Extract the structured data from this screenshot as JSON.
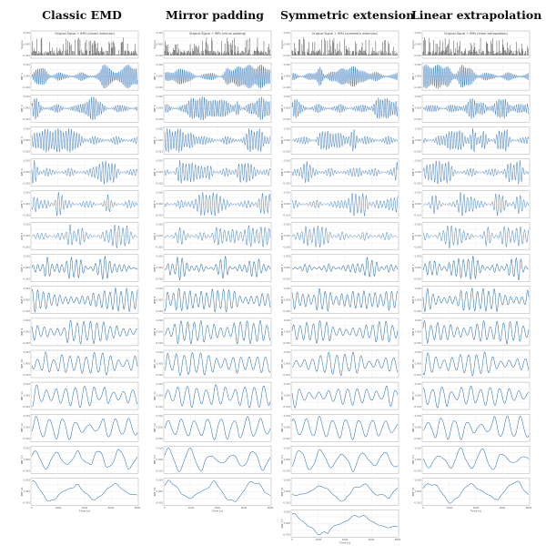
{
  "figure": {
    "columns": [
      {
        "title": "Classic EMD",
        "subtitle": "Original Signal + IMFs (classic extension)",
        "imf_count": 14,
        "row_labels": [
          "Signal",
          "IMF 1",
          "IMF 2",
          "IMF 3",
          "IMF 4",
          "IMF 5",
          "IMF 6",
          "IMF 7",
          "IMF 8",
          "IMF 9",
          "IMF 10",
          "IMF 11",
          "IMF 12",
          "IMF 13",
          "IMF 14"
        ]
      },
      {
        "title": "Mirror padding",
        "subtitle": "Original Signal + IMFs (mirror padding)",
        "imf_count": 14,
        "row_labels": [
          "Signal",
          "IMF 1",
          "IMF 2",
          "IMF 3",
          "IMF 4",
          "IMF 5",
          "IMF 6",
          "IMF 7",
          "IMF 8",
          "IMF 9",
          "IMF 10",
          "IMF 11",
          "IMF 12",
          "IMF 13",
          "IMF 14"
        ]
      },
      {
        "title": "Symmetric extension",
        "subtitle": "Original Signal + IMFs (symmetric extension)",
        "imf_count": 15,
        "row_labels": [
          "Signal",
          "IMF 1",
          "IMF 2",
          "IMF 3",
          "IMF 4",
          "IMF 5",
          "IMF 6",
          "IMF 7",
          "IMF 8",
          "IMF 9",
          "IMF 10",
          "IMF 11",
          "IMF 12",
          "IMF 13",
          "IMF 14",
          "IMF 15"
        ]
      },
      {
        "title": "Linear extrapolation",
        "subtitle": "Original Signal + IMFs (linear extrapolation)",
        "imf_count": 14,
        "row_labels": [
          "Signal",
          "IMF 1",
          "IMF 2",
          "IMF 3",
          "IMF 4",
          "IMF 5",
          "IMF 6",
          "IMF 7",
          "IMF 8",
          "IMF 9",
          "IMF 10",
          "IMF 11",
          "IMF 12",
          "IMF 13",
          "IMF 14"
        ]
      }
    ],
    "x_label": "Time (s)",
    "x_ticks": [
      "0",
      "2000",
      "4000",
      "6000",
      "8000"
    ],
    "y_ticks": [
      "0.010",
      "0.005",
      "0.000",
      "-0.005",
      "-0.010"
    ],
    "colors": {
      "signal": "#000000",
      "imf": "#2f72b5",
      "grid": "#e6e6e6",
      "axes": "#9a9a9a"
    }
  },
  "chart_data": {
    "type": "line",
    "description_rows": "Each column: original signal (spike train) followed by IMF panels; frequency decreases with IMF index.",
    "x_range": [
      0,
      8000
    ],
    "series": [
      {
        "name": "Signal",
        "kind": "spikes",
        "cycles": 0
      },
      {
        "name": "IMF 1",
        "cycles": 60
      },
      {
        "name": "IMF 2",
        "cycles": 48
      },
      {
        "name": "IMF 3",
        "cycles": 40
      },
      {
        "name": "IMF 4",
        "cycles": 34
      },
      {
        "name": "IMF 5",
        "cycles": 30
      },
      {
        "name": "IMF 6",
        "cycles": 26
      },
      {
        "name": "IMF 7",
        "cycles": 22
      },
      {
        "name": "IMF 8",
        "cycles": 19
      },
      {
        "name": "IMF 9",
        "cycles": 16
      },
      {
        "name": "IMF 10",
        "cycles": 13
      },
      {
        "name": "IMF 11",
        "cycles": 11
      },
      {
        "name": "IMF 12",
        "cycles": 8
      },
      {
        "name": "IMF 13",
        "cycles": 5
      },
      {
        "name": "IMF 14",
        "cycles": 2.5
      },
      {
        "name": "IMF 15",
        "cycles": 1.5
      }
    ]
  }
}
